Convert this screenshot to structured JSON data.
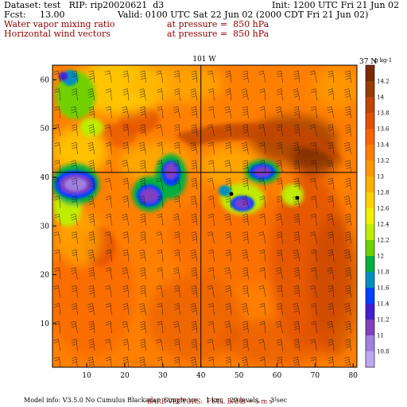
{
  "header": {
    "dataset": "Dataset: test   RIP: rip20020621  d3",
    "init": "Init: 1200 UTC Fri 21 Jun 02",
    "fcst": "Fcst:     13.00",
    "valid": "Valid: 0100 UTC Sat 22 Jun 02 (2000 CDT Fri 21 Jun 02)",
    "field1_name": "Water vapor mixing ratio",
    "field1_level": "at pressure =  850 hPa",
    "field2_name": "Horizontal wind vectors",
    "field2_level": "at pressure =  850 hPa"
  },
  "map": {
    "top_label": "101 W",
    "right_label": "37 N",
    "x_ticks": [
      "10",
      "20",
      "30",
      "40",
      "50",
      "60",
      "70",
      "80"
    ],
    "y_ticks": [
      "10",
      "20",
      "30",
      "40",
      "50",
      "60"
    ],
    "x_range": [
      1,
      81
    ],
    "y_range": [
      1,
      63
    ],
    "crosshair_x": 40,
    "crosshair_y": 41
  },
  "colorbar": {
    "units": "g kg-1",
    "labels": [
      "14.2",
      "14",
      "13.8",
      "13.6",
      "13.4",
      "13.2",
      "13",
      "12.8",
      "12.6",
      "12.4",
      "12.2",
      "12",
      "11.8",
      "11.6",
      "11.4",
      "11.2",
      "11",
      "10.8"
    ],
    "colors": [
      "#7a2a00",
      "#9a3a00",
      "#c24400",
      "#e05000",
      "#f86400",
      "#ff8000",
      "#ff9800",
      "#ffb000",
      "#ffd000",
      "#f0f000",
      "#c0ec00",
      "#70d000",
      "#00b040",
      "#0090c0",
      "#0040ff",
      "#4020d0",
      "#8040c0",
      "#a080e0",
      "#c0a8f0"
    ]
  },
  "footer": {
    "barb_note": "BARB VECTORS:  FULL BARB = 5 m s",
    "barb_unit_sup": "-1",
    "model_info": "Model info: V3.5.0 No Cumulus Blackadar  Simple ice    1 km,   29 levels,     3 sec"
  }
}
